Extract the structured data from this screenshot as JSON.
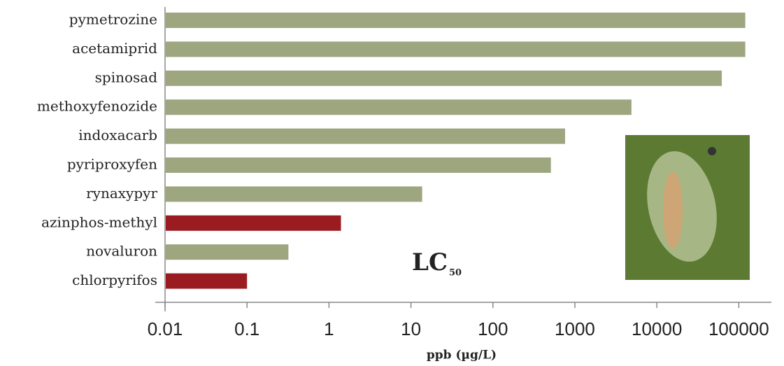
{
  "chart_data": {
    "type": "hbar",
    "categories": [
      "pymetrozine",
      "acetamiprid",
      "spinosad",
      "methoxyfenozide",
      "indoxacarb",
      "pyriproxyfen",
      "rynaxypyr",
      "azinphos-methyl",
      "novaluron",
      "chlorpyrifos"
    ],
    "values": [
      120000,
      120000,
      62000,
      4900,
      760,
      510,
      13.7,
      1.4,
      0.32,
      0.1
    ],
    "colors": [
      "#9da67f",
      "#9da67f",
      "#9da67f",
      "#9da67f",
      "#9da67f",
      "#9da67f",
      "#9da67f",
      "#9b1c20",
      "#9da67f",
      "#9b1c20"
    ],
    "xlim": [
      0.01,
      250000
    ],
    "xticks": [
      0.01,
      0.1,
      1,
      10,
      100,
      1000,
      10000,
      100000
    ],
    "x_log": true,
    "xlabel": "ppb (µg/L)",
    "annotation": {
      "text": "LC",
      "subscript": "50"
    }
  }
}
